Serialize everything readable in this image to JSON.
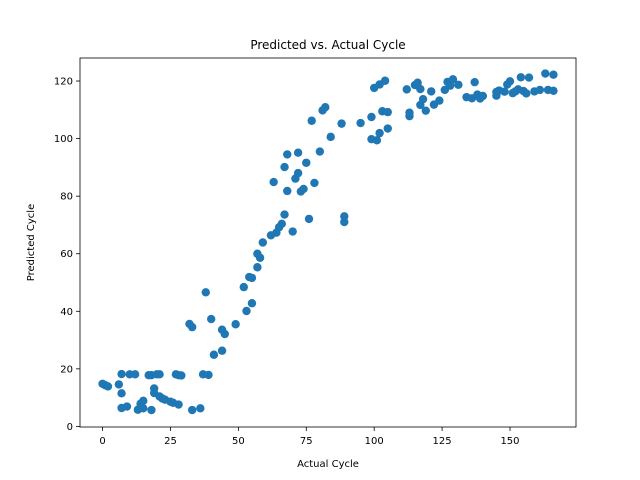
{
  "chart_data": {
    "type": "scatter",
    "title": "Predicted vs. Actual Cycle",
    "xlabel": "Actual Cycle",
    "ylabel": "Predicted Cycle",
    "xlim": [
      -8.3,
      174.3
    ],
    "ylim": [
      -0.2,
      128.0
    ],
    "xticks": [
      0,
      25,
      50,
      75,
      100,
      125,
      150
    ],
    "yticks": [
      0,
      20,
      40,
      60,
      80,
      100,
      120
    ],
    "grid": false,
    "legend": "none",
    "marker_color": "#1f77b4",
    "points": [
      [
        0,
        14.8
      ],
      [
        1,
        14.3
      ],
      [
        2,
        13.9
      ],
      [
        6,
        14.6
      ],
      [
        7,
        11.5
      ],
      [
        7,
        6.4
      ],
      [
        7,
        18.2
      ],
      [
        9,
        6.9
      ],
      [
        10,
        18.1
      ],
      [
        12,
        18.1
      ],
      [
        13,
        5.8
      ],
      [
        14,
        7.9
      ],
      [
        15,
        8.9
      ],
      [
        15,
        6.3
      ],
      [
        17,
        17.8
      ],
      [
        18,
        17.8
      ],
      [
        18,
        5.7
      ],
      [
        19,
        13.2
      ],
      [
        19,
        11.6
      ],
      [
        20,
        18.1
      ],
      [
        21,
        18.1
      ],
      [
        21,
        10.4
      ],
      [
        22,
        9.7
      ],
      [
        23,
        9.3
      ],
      [
        25,
        8.6
      ],
      [
        26,
        8.2
      ],
      [
        27,
        18.1
      ],
      [
        28,
        7.6
      ],
      [
        28,
        17.8
      ],
      [
        29,
        17.7
      ],
      [
        32,
        35.6
      ],
      [
        33,
        34.5
      ],
      [
        33,
        5.7
      ],
      [
        36,
        6.3
      ],
      [
        37,
        18.1
      ],
      [
        38,
        46.6
      ],
      [
        39,
        17.9
      ],
      [
        40,
        37.3
      ],
      [
        41,
        24.9
      ],
      [
        44,
        33.6
      ],
      [
        44,
        26.3
      ],
      [
        45,
        32.1
      ],
      [
        49,
        35.5
      ],
      [
        52,
        48.4
      ],
      [
        53,
        40.1
      ],
      [
        54,
        51.9
      ],
      [
        55,
        51.6
      ],
      [
        55,
        42.8
      ],
      [
        57,
        55.3
      ],
      [
        57,
        60.0
      ],
      [
        58,
        58.6
      ],
      [
        59,
        63.9
      ],
      [
        62,
        66.4
      ],
      [
        63,
        84.9
      ],
      [
        64,
        67.3
      ],
      [
        65,
        69.2
      ],
      [
        66,
        70.4
      ],
      [
        67,
        73.6
      ],
      [
        67,
        90.1
      ],
      [
        68,
        81.8
      ],
      [
        68,
        94.5
      ],
      [
        70,
        67.7
      ],
      [
        71,
        86.1
      ],
      [
        72,
        95.1
      ],
      [
        72,
        88.0
      ],
      [
        73,
        81.6
      ],
      [
        74,
        82.5
      ],
      [
        75,
        91.6
      ],
      [
        76,
        72.1
      ],
      [
        77,
        106.2
      ],
      [
        78,
        84.6
      ],
      [
        80,
        95.5
      ],
      [
        81,
        109.8
      ],
      [
        82,
        110.9
      ],
      [
        84,
        100.6
      ],
      [
        88,
        105.2
      ],
      [
        89,
        73.0
      ],
      [
        89,
        71.0
      ],
      [
        95,
        105.4
      ],
      [
        99,
        107.5
      ],
      [
        99,
        99.8
      ],
      [
        100,
        117.6
      ],
      [
        101,
        99.4
      ],
      [
        102,
        101.9
      ],
      [
        102,
        118.8
      ],
      [
        103,
        109.5
      ],
      [
        104,
        120.1
      ],
      [
        105,
        103.5
      ],
      [
        105,
        109.2
      ],
      [
        112,
        117.1
      ],
      [
        113,
        107.8
      ],
      [
        113,
        109.0
      ],
      [
        115,
        118.6
      ],
      [
        116,
        119.4
      ],
      [
        117,
        117.2
      ],
      [
        117,
        111.7
      ],
      [
        118,
        113.7
      ],
      [
        119,
        109.7
      ],
      [
        121,
        116.4
      ],
      [
        122,
        111.8
      ],
      [
        124,
        113.2
      ],
      [
        126,
        116.9
      ],
      [
        127,
        119.7
      ],
      [
        128,
        118.4
      ],
      [
        129,
        120.6
      ],
      [
        131,
        118.7
      ],
      [
        134,
        114.4
      ],
      [
        136,
        114.0
      ],
      [
        137,
        119.6
      ],
      [
        138,
        115.3
      ],
      [
        139,
        113.9
      ],
      [
        140,
        114.8
      ],
      [
        145,
        116.2
      ],
      [
        145,
        114.9
      ],
      [
        146,
        116.7
      ],
      [
        148,
        116.3
      ],
      [
        149,
        118.8
      ],
      [
        150,
        119.9
      ],
      [
        151,
        115.8
      ],
      [
        152,
        116.4
      ],
      [
        153,
        117.1
      ],
      [
        154,
        121.3
      ],
      [
        155,
        116.5
      ],
      [
        156,
        115.7
      ],
      [
        157,
        121.2
      ],
      [
        159,
        116.4
      ],
      [
        161,
        116.9
      ],
      [
        163,
        122.6
      ],
      [
        164,
        116.9
      ],
      [
        166,
        122.2
      ],
      [
        166,
        116.6
      ]
    ]
  }
}
